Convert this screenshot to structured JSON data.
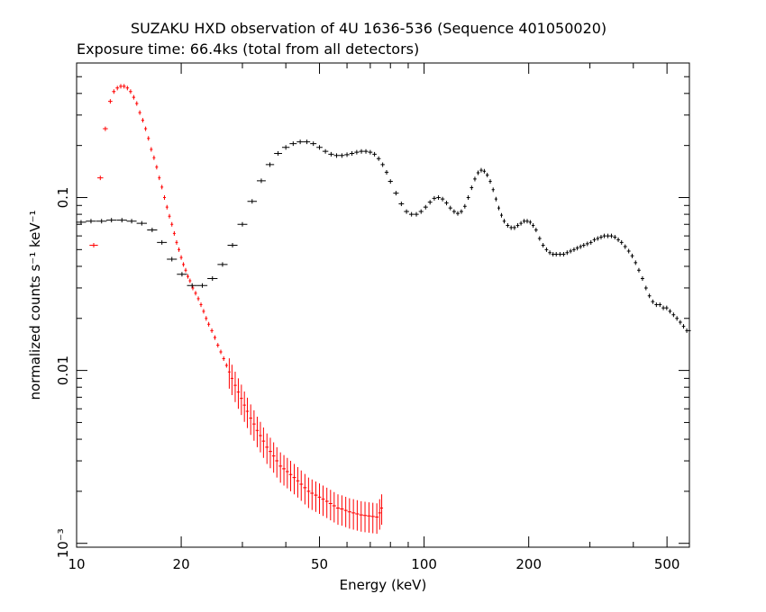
{
  "chart_data": {
    "type": "scatter",
    "title": "SUZAKU HXD observation of 4U 1636-536 (Sequence 401050020)",
    "subtitle": "Exposure time: 66.4ks (total from all detectors)",
    "xlabel": "Energy (keV)",
    "ylabel": "normalized counts s⁻¹ keV⁻¹",
    "xscale": "log",
    "yscale": "log",
    "xlim": [
      10,
      580
    ],
    "ylim": [
      0.00095,
      0.6
    ],
    "grid": false,
    "legend": "none",
    "x_ticks": [
      {
        "value": 10,
        "label": "10"
      },
      {
        "value": 20,
        "label": "20"
      },
      {
        "value": 50,
        "label": "50"
      },
      {
        "value": 100,
        "label": "100"
      },
      {
        "value": 200,
        "label": "200"
      },
      {
        "value": 500,
        "label": "500"
      }
    ],
    "y_ticks": [
      {
        "value": 0.001,
        "label": "10⁻³"
      },
      {
        "value": 0.01,
        "label": "0.01"
      },
      {
        "value": 0.1,
        "label": "0.1"
      }
    ],
    "series": [
      {
        "color": "#ff0000",
        "x": [
          11.2,
          11.7,
          12.1,
          12.5,
          12.8,
          13.1,
          13.4,
          13.7,
          14.0,
          14.3,
          14.6,
          14.9,
          15.2,
          15.5,
          15.8,
          16.1,
          16.4,
          16.7,
          17.0,
          17.3,
          17.6,
          17.9,
          18.2,
          18.5,
          18.8,
          19.1,
          19.4,
          19.7,
          20.0,
          20.3,
          20.6,
          20.9,
          21.2,
          21.6,
          22.0,
          22.4,
          22.8,
          23.2,
          23.6,
          24.0,
          24.5,
          25.0,
          25.5,
          26.0,
          26.5,
          27.0,
          27.5,
          28.0,
          28.6,
          29.2,
          29.8,
          30.4,
          31.0,
          31.7,
          32.4,
          33.1,
          33.8,
          34.5,
          35.3,
          36.1,
          36.9,
          37.7,
          38.6,
          39.5,
          40.4,
          41.3,
          42.3,
          43.3,
          44.3,
          45.4,
          46.5,
          47.6,
          48.8,
          50.0,
          51.2,
          52.5,
          53.8,
          55.1,
          56.5,
          58.0,
          59.5,
          61.0,
          62.6,
          64.2,
          65.9,
          67.6,
          69.4,
          71.2,
          73.1,
          74.5,
          75.5
        ],
        "y": [
          0.053,
          0.13,
          0.25,
          0.36,
          0.41,
          0.43,
          0.44,
          0.44,
          0.43,
          0.41,
          0.38,
          0.35,
          0.31,
          0.28,
          0.25,
          0.22,
          0.19,
          0.17,
          0.15,
          0.13,
          0.115,
          0.1,
          0.088,
          0.078,
          0.07,
          0.062,
          0.055,
          0.05,
          0.045,
          0.041,
          0.038,
          0.035,
          0.033,
          0.03,
          0.028,
          0.026,
          0.024,
          0.022,
          0.02,
          0.0185,
          0.017,
          0.0155,
          0.014,
          0.0128,
          0.0117,
          0.0107,
          0.0098,
          0.009,
          0.0082,
          0.0075,
          0.0069,
          0.0063,
          0.0058,
          0.0053,
          0.0049,
          0.0045,
          0.0042,
          0.0039,
          0.0036,
          0.0034,
          0.0032,
          0.003,
          0.0028,
          0.0027,
          0.0026,
          0.0025,
          0.0024,
          0.0023,
          0.0022,
          0.0021,
          0.002,
          0.00195,
          0.0019,
          0.00185,
          0.0018,
          0.00175,
          0.0017,
          0.00165,
          0.0016,
          0.00158,
          0.00155,
          0.00152,
          0.0015,
          0.00148,
          0.00146,
          0.00145,
          0.00144,
          0.00143,
          0.00142,
          0.0015,
          0.0016
        ]
      },
      {
        "color": "#000000",
        "x": [
          10.3,
          11.0,
          11.8,
          12.6,
          13.5,
          14.4,
          15.4,
          16.5,
          17.6,
          18.8,
          20.1,
          21.5,
          23.0,
          24.6,
          26.3,
          28.1,
          30.0,
          32.0,
          34.0,
          36.0,
          38.0,
          40.0,
          42.0,
          44.0,
          46.0,
          48.0,
          50.0,
          52.0,
          54.0,
          56.0,
          58.0,
          60.0,
          62.0,
          64.0,
          66.0,
          68.0,
          70.0,
          72.0,
          74.0,
          76.0,
          78.0,
          80.0,
          83.0,
          86.0,
          89.0,
          92.0,
          95.0,
          98.0,
          101.0,
          104.0,
          107.0,
          110.0,
          113.0,
          116.0,
          119.0,
          122.0,
          125.0,
          128.0,
          131.0,
          134.0,
          137.0,
          140.0,
          143.0,
          146.0,
          149.0,
          152.0,
          155.0,
          158.0,
          161.0,
          164.0,
          167.0,
          170.0,
          174.0,
          178.0,
          182.0,
          186.0,
          190.0,
          194.0,
          198.0,
          202.0,
          206.0,
          210.0,
          215.0,
          220.0,
          225.0,
          230.0,
          235.0,
          240.0,
          246.0,
          252.0,
          258.0,
          264.0,
          270.0,
          276.0,
          282.0,
          288.0,
          295.0,
          302.0,
          309.0,
          316.0,
          323.0,
          330.0,
          338.0,
          346.0,
          354.0,
          362.0,
          370.0,
          379.0,
          388.0,
          397.0,
          406.0,
          415.0,
          425.0,
          435.0,
          445.0,
          455.0,
          466.0,
          477.0,
          488.0,
          499.0,
          510.0,
          522.0,
          534.0,
          546.0,
          558.0,
          570.0,
          580.0
        ],
        "y": [
          0.072,
          0.073,
          0.073,
          0.074,
          0.074,
          0.073,
          0.071,
          0.065,
          0.055,
          0.044,
          0.036,
          0.031,
          0.031,
          0.034,
          0.041,
          0.053,
          0.07,
          0.095,
          0.125,
          0.155,
          0.18,
          0.195,
          0.205,
          0.21,
          0.21,
          0.205,
          0.195,
          0.185,
          0.178,
          0.175,
          0.175,
          0.177,
          0.18,
          0.183,
          0.185,
          0.185,
          0.183,
          0.178,
          0.168,
          0.155,
          0.14,
          0.124,
          0.106,
          0.092,
          0.083,
          0.08,
          0.08,
          0.083,
          0.088,
          0.094,
          0.099,
          0.1,
          0.098,
          0.093,
          0.087,
          0.083,
          0.081,
          0.083,
          0.089,
          0.1,
          0.114,
          0.128,
          0.139,
          0.144,
          0.142,
          0.135,
          0.124,
          0.111,
          0.098,
          0.087,
          0.079,
          0.073,
          0.069,
          0.067,
          0.067,
          0.069,
          0.071,
          0.073,
          0.073,
          0.072,
          0.069,
          0.065,
          0.058,
          0.053,
          0.05,
          0.048,
          0.047,
          0.047,
          0.047,
          0.047,
          0.048,
          0.049,
          0.05,
          0.051,
          0.052,
          0.053,
          0.054,
          0.055,
          0.057,
          0.058,
          0.059,
          0.06,
          0.06,
          0.06,
          0.059,
          0.057,
          0.055,
          0.052,
          0.049,
          0.046,
          0.042,
          0.038,
          0.034,
          0.03,
          0.027,
          0.025,
          0.024,
          0.024,
          0.023,
          0.023,
          0.022,
          0.021,
          0.02,
          0.019,
          0.018,
          0.017,
          0.017
        ]
      }
    ]
  }
}
